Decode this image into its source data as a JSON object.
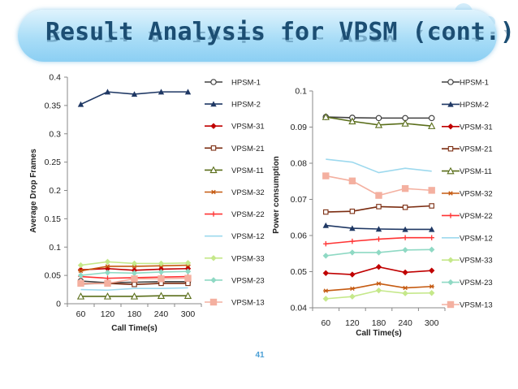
{
  "slide": {
    "title": "Result Analysis for VPSM (cont.)",
    "page_number": "41",
    "accent_color": "#1c4e73",
    "banner_color": "#a9ddf7"
  },
  "chart_data": [
    {
      "type": "line",
      "xlabel": "Call Time(s)",
      "ylabel": "Average Drop Frames",
      "x": [
        60,
        120,
        180,
        240,
        300
      ],
      "x_tick_labels": [
        "60",
        "120",
        "180",
        "240",
        "300"
      ],
      "ylim": [
        0,
        0.4
      ],
      "y_ticks": [
        0,
        0.05,
        0.1,
        0.15,
        0.2,
        0.25,
        0.3,
        0.35,
        0.4
      ],
      "y_tick_labels": [
        "0",
        "0.05",
        "0.1",
        "0.15",
        "0.2",
        "0.25",
        "0.3",
        "0.35",
        "0.4"
      ],
      "grid": false,
      "legend_position": "right",
      "series": [
        {
          "name": "HPSM-1",
          "values": [
            0.04,
            0.037,
            0.038,
            0.039,
            0.039
          ],
          "color": "#404040",
          "marker": "circle-open"
        },
        {
          "name": "HPSM-2",
          "values": [
            0.352,
            0.374,
            0.37,
            0.374,
            0.374
          ],
          "color": "#1f3864",
          "marker": "triangle"
        },
        {
          "name": "VPSM-31",
          "values": [
            0.06,
            0.062,
            0.059,
            0.061,
            0.062
          ],
          "color": "#c00000",
          "marker": "diamond"
        },
        {
          "name": "VPSM-21",
          "values": [
            0.035,
            0.036,
            0.034,
            0.036,
            0.036
          ],
          "color": "#7b2c10",
          "marker": "square-open"
        },
        {
          "name": "VPSM-11",
          "values": [
            0.013,
            0.013,
            0.013,
            0.014,
            0.014
          ],
          "color": "#5a6e1a",
          "marker": "triangle-open"
        },
        {
          "name": "VPSM-32",
          "values": [
            0.058,
            0.066,
            0.066,
            0.067,
            0.068
          ],
          "color": "#c55a11",
          "marker": "asterisk"
        },
        {
          "name": "VPSM-22",
          "values": [
            0.048,
            0.045,
            0.046,
            0.047,
            0.048
          ],
          "color": "#ff3333",
          "marker": "plus"
        },
        {
          "name": "VPSM-12",
          "values": [
            0.025,
            0.024,
            0.027,
            0.027,
            0.028
          ],
          "color": "#9dd9ee",
          "marker": "none"
        },
        {
          "name": "VPSM-33",
          "values": [
            0.068,
            0.074,
            0.071,
            0.071,
            0.072
          ],
          "color": "#c5e88a",
          "marker": "diamond"
        },
        {
          "name": "VPSM-23",
          "values": [
            0.05,
            0.055,
            0.054,
            0.056,
            0.057
          ],
          "color": "#8fd9c4",
          "marker": "diamond"
        },
        {
          "name": "VPSM-13",
          "values": [
            0.036,
            0.036,
            0.044,
            0.044,
            0.045
          ],
          "color": "#f4b0a0",
          "marker": "square"
        }
      ]
    },
    {
      "type": "line",
      "xlabel": "Call Time(s)",
      "ylabel": "Power consumption",
      "x": [
        60,
        120,
        180,
        240,
        300
      ],
      "x_tick_labels": [
        "60",
        "120",
        "180",
        "240",
        "300"
      ],
      "ylim": [
        0.04,
        0.1
      ],
      "y_ticks": [
        0.04,
        0.05,
        0.06,
        0.07,
        0.08,
        0.09,
        0.1
      ],
      "y_tick_labels": [
        "0.04",
        "0.05",
        "0.06",
        "0.07",
        "0.08",
        "0.09",
        "0.1"
      ],
      "grid": false,
      "legend_position": "right",
      "series": [
        {
          "name": "HPSM-1",
          "values": [
            0.0928,
            0.0926,
            0.0925,
            0.0925,
            0.0925
          ],
          "color": "#404040",
          "marker": "circle-open"
        },
        {
          "name": "HPSM-2",
          "values": [
            0.0628,
            0.062,
            0.0618,
            0.0617,
            0.0617
          ],
          "color": "#1f3864",
          "marker": "triangle"
        },
        {
          "name": "VPSM-31",
          "values": [
            0.0496,
            0.0492,
            0.0513,
            0.0498,
            0.0503
          ],
          "color": "#c00000",
          "marker": "diamond"
        },
        {
          "name": "VPSM-21",
          "values": [
            0.0665,
            0.0667,
            0.068,
            0.0678,
            0.0682
          ],
          "color": "#7b2c10",
          "marker": "square-open"
        },
        {
          "name": "VPSM-11",
          "values": [
            0.0928,
            0.0916,
            0.0906,
            0.091,
            0.0903
          ],
          "color": "#5a6e1a",
          "marker": "triangle-open"
        },
        {
          "name": "VPSM-32",
          "values": [
            0.0447,
            0.0453,
            0.0467,
            0.0455,
            0.0459
          ],
          "color": "#c55a11",
          "marker": "asterisk"
        },
        {
          "name": "VPSM-22",
          "values": [
            0.0577,
            0.0584,
            0.059,
            0.0594,
            0.0594
          ],
          "color": "#ff3333",
          "marker": "plus"
        },
        {
          "name": "VPSM-12",
          "values": [
            0.0811,
            0.0803,
            0.0774,
            0.0786,
            0.0778
          ],
          "color": "#9dd9ee",
          "marker": "none"
        },
        {
          "name": "VPSM-33",
          "values": [
            0.0425,
            0.0431,
            0.0448,
            0.044,
            0.0441
          ],
          "color": "#c5e88a",
          "marker": "diamond"
        },
        {
          "name": "VPSM-23",
          "values": [
            0.0544,
            0.0553,
            0.0553,
            0.056,
            0.0561
          ],
          "color": "#8fd9c4",
          "marker": "diamond"
        },
        {
          "name": "VPSM-13",
          "values": [
            0.0765,
            0.0751,
            0.0711,
            0.073,
            0.0725
          ],
          "color": "#f4b0a0",
          "marker": "square"
        }
      ]
    }
  ]
}
